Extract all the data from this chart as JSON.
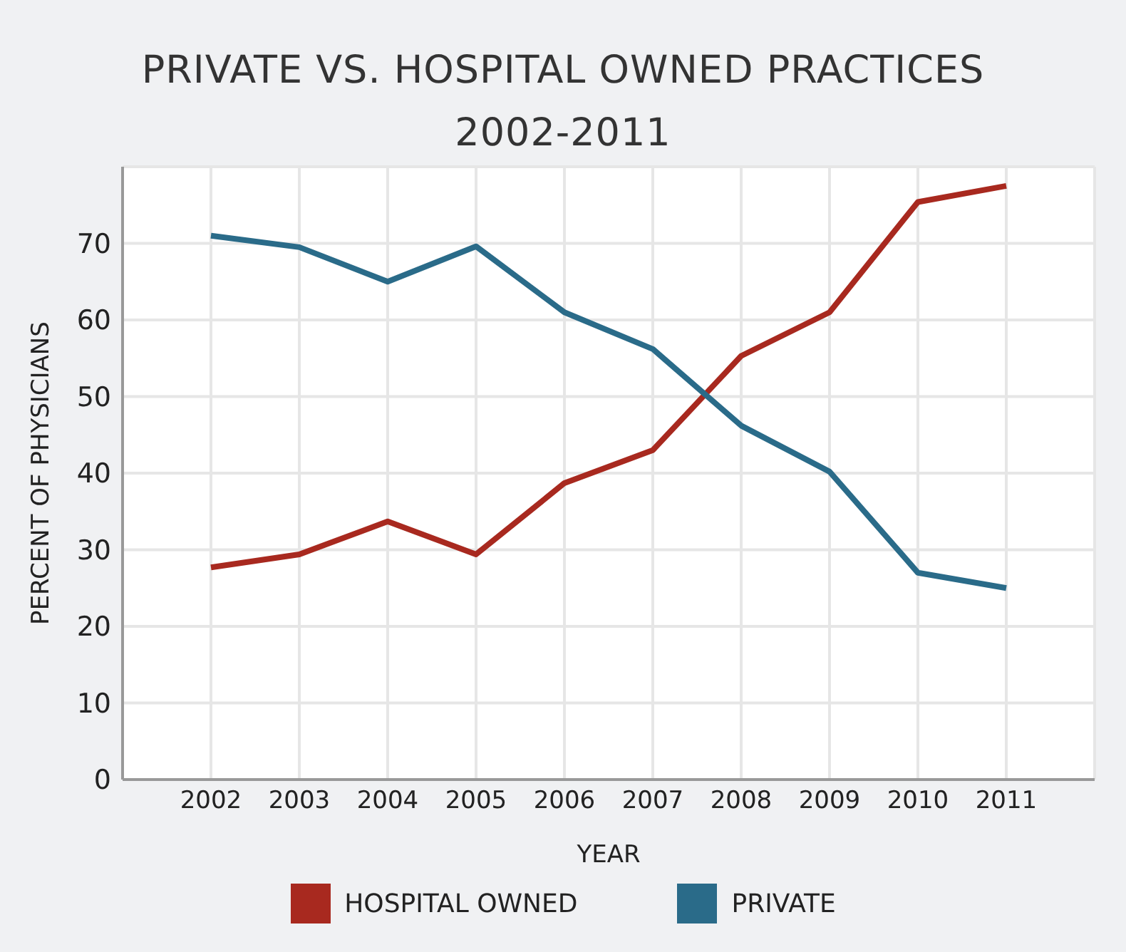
{
  "chart_data": {
    "type": "line",
    "title": "PRIVATE VS. HOSPITAL OWNED PRACTICES\n2002-2011",
    "xlabel": "YEAR",
    "ylabel": "PERCENT OF PHYSICIANS",
    "categories": [
      "2002",
      "2003",
      "2004",
      "2005",
      "2006",
      "2007",
      "2008",
      "2009",
      "2010",
      "2011"
    ],
    "series": [
      {
        "name": "HOSPITAL OWNED",
        "color": "#a8291f",
        "values": [
          27.7,
          29.4,
          33.7,
          29.4,
          38.7,
          43,
          55.3,
          61,
          75.4,
          77.5
        ]
      },
      {
        "name": "PRIVATE",
        "color": "#2a6b89",
        "values": [
          71,
          69.5,
          65,
          69.6,
          61,
          56.2,
          46.2,
          40.2,
          27,
          25
        ]
      }
    ],
    "ylim": [
      0,
      80
    ],
    "yticks": [
      0,
      10,
      20,
      30,
      40,
      50,
      60,
      70
    ],
    "grid": true,
    "legend": "bottom",
    "marker": "none",
    "line_style": "solid"
  }
}
